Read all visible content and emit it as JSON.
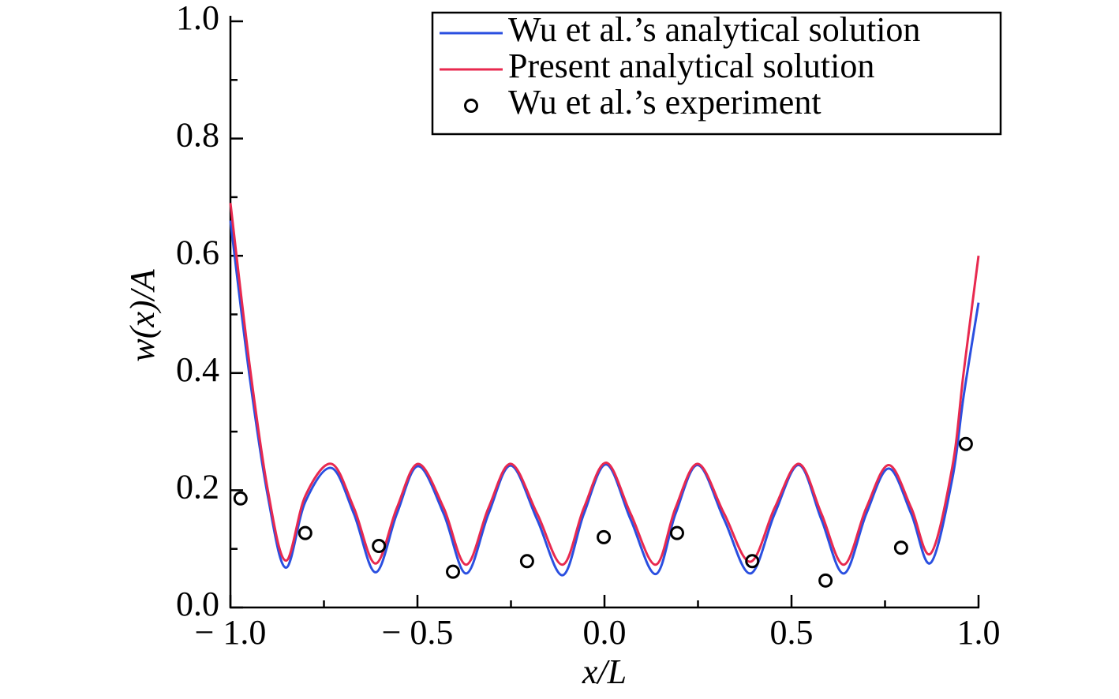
{
  "chart_data": {
    "type": "line",
    "xlabel": "x/L",
    "ylabel": "w(x)/A",
    "xlim": [
      -1.0,
      1.0
    ],
    "ylim": [
      0.0,
      1.0
    ],
    "xticks": [
      {
        "value": -1.0,
        "label": "− 1.0"
      },
      {
        "value": -0.5,
        "label": "− 0.5"
      },
      {
        "value": 0.0,
        "label": "0.0"
      },
      0.5,
      {
        "value": 1.0,
        "label": "1.0"
      }
    ],
    "yticks": [
      {
        "value": 0.0,
        "label": "0.0"
      },
      0.2,
      0.4,
      0.6,
      0.8,
      {
        "value": 1.0,
        "label": "1.0"
      }
    ],
    "legend": "upper right",
    "x": [
      -1.0,
      -0.95,
      -0.9,
      -0.852,
      -0.8,
      -0.73,
      -0.67,
      -0.612,
      -0.555,
      -0.498,
      -0.43,
      -0.37,
      -0.31,
      -0.25,
      -0.18,
      -0.112,
      -0.055,
      0.005,
      0.07,
      0.137,
      0.19,
      0.25,
      0.32,
      0.39,
      0.455,
      0.52,
      0.58,
      0.64,
      0.7,
      0.76,
      0.82,
      0.872,
      0.93,
      0.96,
      1.0
    ],
    "series": [
      {
        "name": "Wu et al.’s analytical solution",
        "color": "#2a4fe0",
        "type": "line",
        "values": [
          0.66,
          0.4,
          0.19,
          0.068,
          0.18,
          0.238,
          0.16,
          0.06,
          0.16,
          0.241,
          0.16,
          0.058,
          0.16,
          0.242,
          0.15,
          0.055,
          0.16,
          0.244,
          0.15,
          0.057,
          0.16,
          0.243,
          0.15,
          0.058,
          0.16,
          0.243,
          0.15,
          0.058,
          0.16,
          0.237,
          0.16,
          0.076,
          0.22,
          0.36,
          0.52
        ]
      },
      {
        "name": "Present analytical solution",
        "color": "#e8294f",
        "type": "line",
        "values": [
          0.69,
          0.42,
          0.2,
          0.08,
          0.19,
          0.245,
          0.17,
          0.075,
          0.17,
          0.245,
          0.17,
          0.073,
          0.17,
          0.245,
          0.16,
          0.073,
          0.17,
          0.247,
          0.16,
          0.073,
          0.17,
          0.245,
          0.16,
          0.078,
          0.17,
          0.245,
          0.16,
          0.073,
          0.17,
          0.243,
          0.17,
          0.092,
          0.24,
          0.4,
          0.6
        ]
      },
      {
        "name": "Wu et al.’s experiment",
        "color": "#000000",
        "type": "scatter",
        "x": [
          -0.973,
          -0.8,
          -0.603,
          -0.405,
          -0.207,
          -0.002,
          0.194,
          0.395,
          0.591,
          0.793,
          0.966
        ],
        "values": [
          0.186,
          0.127,
          0.105,
          0.061,
          0.079,
          0.12,
          0.127,
          0.079,
          0.046,
          0.102,
          0.279
        ]
      }
    ]
  }
}
